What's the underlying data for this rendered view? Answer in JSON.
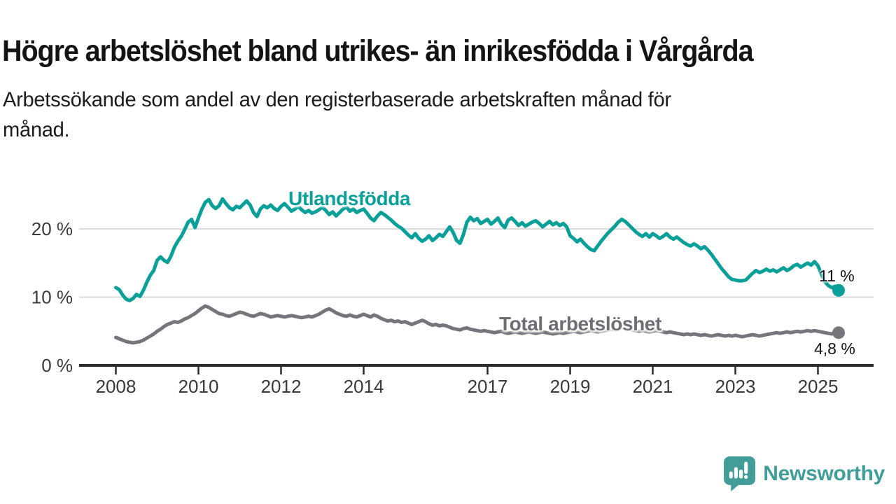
{
  "title": "Högre arbetslöshet bland utrikes- än inrikesfödda i Vårgårda",
  "subtitle_line1": "Arbetssökande som andel av den registerbaserade arbetskraften månad för",
  "subtitle_line2": "månad.",
  "branding": {
    "logo_text": "Newsworthy",
    "logo_color": "#3f9e99"
  },
  "colors": {
    "series_foreign_born": "#0aa09a",
    "series_total": "#76757b",
    "axis": "#2d2d2d",
    "gridline": "#dcdcdc",
    "tick_label": "#3a3a3a",
    "title_text": "#141414"
  },
  "chart_data": {
    "type": "line",
    "x_frequency": "monthly",
    "x_start": "2008-01",
    "x_end": "2025-07",
    "grid": "horizontal",
    "ylim": [
      0,
      26
    ],
    "yticks": [
      {
        "value": 0,
        "label": "0 %"
      },
      {
        "value": 10,
        "label": "10 %"
      },
      {
        "value": 20,
        "label": "20 %"
      }
    ],
    "xticks": [
      {
        "year": 2008,
        "label": "2008"
      },
      {
        "year": 2010,
        "label": "2010"
      },
      {
        "year": 2012,
        "label": "2012"
      },
      {
        "year": 2014,
        "label": "2014"
      },
      {
        "year": 2017,
        "label": "2017"
      },
      {
        "year": 2019,
        "label": "2019"
      },
      {
        "year": 2021,
        "label": "2021"
      },
      {
        "year": 2023,
        "label": "2023"
      },
      {
        "year": 2025,
        "label": "2025"
      }
    ],
    "series": [
      {
        "name": "Utlandsfödda",
        "color": "#0aa09a",
        "end_label": "11 %",
        "end_value": 11,
        "values": [
          11.4,
          11.1,
          10.3,
          9.7,
          9.5,
          9.8,
          10.4,
          10.1,
          11.0,
          12.2,
          13.2,
          13.9,
          15.4,
          15.9,
          15.4,
          15.1,
          16.0,
          17.3,
          18.2,
          18.9,
          19.9,
          21.0,
          21.4,
          20.2,
          21.6,
          22.9,
          23.9,
          24.3,
          23.4,
          23.0,
          23.4,
          24.4,
          23.7,
          23.1,
          22.8,
          23.3,
          23.1,
          23.6,
          24.1,
          23.5,
          22.4,
          21.8,
          22.9,
          23.4,
          23.1,
          23.5,
          23.0,
          22.7,
          23.3,
          23.7,
          23.2,
          22.6,
          22.9,
          23.3,
          22.8,
          22.4,
          22.7,
          22.3,
          22.5,
          22.8,
          23.2,
          22.7,
          22.1,
          22.5,
          21.9,
          22.4,
          22.9,
          23.2,
          22.6,
          22.9,
          22.4,
          22.7,
          22.9,
          22.3,
          21.6,
          21.2,
          21.9,
          22.4,
          22.1,
          21.7,
          21.3,
          20.8,
          20.4,
          20.1,
          19.6,
          19.1,
          18.7,
          19.3,
          18.6,
          18.2,
          18.5,
          19.0,
          18.3,
          18.7,
          19.2,
          18.9,
          19.6,
          20.3,
          19.5,
          18.3,
          17.9,
          19.2,
          21.0,
          21.7,
          21.2,
          21.5,
          20.8,
          21.1,
          21.4,
          20.7,
          21.1,
          21.6,
          20.7,
          20.2,
          21.3,
          21.6,
          21.1,
          20.5,
          20.9,
          20.4,
          20.7,
          21.0,
          21.2,
          20.8,
          20.3,
          20.7,
          21.1,
          20.6,
          20.9,
          20.5,
          20.8,
          20.3,
          19.0,
          18.6,
          18.1,
          18.5,
          17.9,
          17.4,
          17.0,
          16.8,
          17.5,
          18.2,
          18.8,
          19.4,
          19.9,
          20.4,
          21.0,
          21.4,
          21.1,
          20.6,
          20.1,
          19.6,
          19.2,
          18.9,
          19.3,
          18.8,
          19.3,
          19.0,
          18.6,
          18.9,
          19.3,
          18.8,
          18.5,
          18.8,
          18.4,
          18.0,
          17.7,
          17.5,
          17.8,
          17.5,
          17.1,
          17.4,
          16.9,
          16.3,
          15.6,
          14.9,
          14.2,
          13.6,
          13.0,
          12.6,
          12.5,
          12.4,
          12.4,
          12.5,
          13.0,
          13.5,
          13.9,
          13.6,
          13.8,
          14.1,
          13.8,
          14.0,
          13.7,
          14.0,
          14.3,
          13.9,
          14.2,
          14.6,
          14.8,
          14.4,
          14.7,
          15.0,
          14.7,
          15.2,
          14.6,
          13.4,
          12.3,
          11.7,
          11.4,
          11.6,
          11.0
        ]
      },
      {
        "name": "Total arbetslöshet",
        "color": "#76757b",
        "end_label": "4,8 %",
        "end_value": 4.8,
        "values": [
          4.1,
          3.9,
          3.7,
          3.5,
          3.4,
          3.3,
          3.4,
          3.5,
          3.7,
          4.0,
          4.3,
          4.6,
          5.0,
          5.3,
          5.7,
          6.0,
          6.2,
          6.4,
          6.3,
          6.5,
          6.8,
          7.0,
          7.3,
          7.6,
          8.0,
          8.4,
          8.7,
          8.5,
          8.2,
          7.9,
          7.6,
          7.5,
          7.3,
          7.2,
          7.4,
          7.6,
          7.8,
          7.7,
          7.5,
          7.3,
          7.2,
          7.4,
          7.6,
          7.5,
          7.3,
          7.1,
          7.2,
          7.3,
          7.2,
          7.1,
          7.2,
          7.3,
          7.2,
          7.1,
          7.0,
          7.1,
          7.2,
          7.1,
          7.3,
          7.5,
          7.8,
          8.1,
          8.3,
          8.0,
          7.7,
          7.5,
          7.3,
          7.2,
          7.4,
          7.2,
          7.1,
          7.3,
          7.5,
          7.3,
          7.1,
          7.4,
          7.2,
          6.9,
          6.7,
          6.5,
          6.6,
          6.4,
          6.5,
          6.3,
          6.4,
          6.2,
          6.0,
          6.2,
          6.4,
          6.6,
          6.4,
          6.1,
          5.9,
          6.0,
          5.8,
          5.9,
          5.8,
          5.6,
          5.4,
          5.3,
          5.2,
          5.4,
          5.5,
          5.3,
          5.2,
          5.1,
          5.0,
          5.1,
          5.0,
          4.9,
          4.8,
          4.9,
          5.0,
          4.8,
          4.7,
          4.8,
          4.9,
          4.8,
          4.7,
          4.8,
          4.9,
          4.8,
          4.7,
          4.8,
          4.9,
          4.8,
          4.7,
          4.6,
          4.7,
          4.8,
          4.7,
          4.8,
          4.9,
          5.0,
          4.9,
          4.8,
          4.9,
          5.0,
          5.1,
          5.0,
          4.9,
          5.0,
          5.1,
          5.2,
          5.3,
          5.2,
          5.4,
          5.5,
          5.4,
          5.3,
          5.2,
          5.1,
          5.0,
          5.1,
          5.0,
          4.9,
          5.0,
          5.1,
          5.0,
          4.9,
          4.8,
          4.9,
          4.8,
          4.7,
          4.6,
          4.5,
          4.6,
          4.5,
          4.6,
          4.5,
          4.4,
          4.5,
          4.4,
          4.3,
          4.4,
          4.5,
          4.4,
          4.3,
          4.4,
          4.3,
          4.4,
          4.3,
          4.2,
          4.3,
          4.4,
          4.5,
          4.4,
          4.3,
          4.4,
          4.5,
          4.6,
          4.7,
          4.8,
          4.7,
          4.8,
          4.9,
          4.8,
          4.9,
          5.0,
          4.9,
          5.0,
          5.1,
          5.0,
          5.1,
          5.0,
          4.9,
          4.8,
          4.7,
          4.6,
          4.9,
          4.8
        ]
      }
    ]
  }
}
